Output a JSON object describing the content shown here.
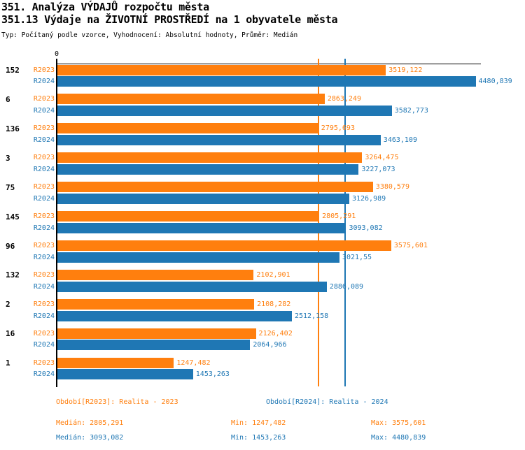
{
  "header": {
    "title1": "351. Analýza VÝDAJŮ rozpočtu města",
    "title2": "351.13 Výdaje na ŽIVOTNÍ PROSTŘEDÍ na 1 obyvatele města",
    "subtitle": "Typ: Počítaný podle vzorce, Vyhodnocení: Absolutní hodnoty, Průměr: Medián"
  },
  "colors": {
    "r2023": "#ff7f0e",
    "r2024": "#1f77b4",
    "axis": "#000000",
    "background": "#ffffff"
  },
  "axis": {
    "zero_label": "0"
  },
  "chart_data": {
    "type": "bar",
    "orientation": "horizontal",
    "categories": [
      "152",
      "6",
      "136",
      "3",
      "75",
      "145",
      "96",
      "132",
      "2",
      "16",
      "1"
    ],
    "series": [
      {
        "name": "R2023",
        "color": "#ff7f0e",
        "values": [
          3519.122,
          2863.249,
          2795.693,
          3264.475,
          3380.579,
          2805.291,
          3575.601,
          2102.901,
          2108.282,
          2126.402,
          1247.482
        ],
        "value_labels": [
          "3519,122",
          "2863,249",
          "2795,693",
          "3264,475",
          "3380,579",
          "2805,291",
          "3575,601",
          "2102,901",
          "2108,282",
          "2126,402",
          "1247,482"
        ]
      },
      {
        "name": "R2024",
        "color": "#1f77b4",
        "values": [
          4480.839,
          3582.773,
          3463.109,
          3227.073,
          3126.989,
          3093.082,
          3021.55,
          2886.089,
          2512.158,
          2064.966,
          1453.263
        ],
        "value_labels": [
          "4480,839",
          "3582,773",
          "3463,109",
          "3227,073",
          "3126,989",
          "3093,082",
          "3021,55",
          "2886,089",
          "2512,158",
          "2064,966",
          "1453,263"
        ]
      }
    ],
    "median_lines": [
      {
        "series": "R2023",
        "value": 2805.291,
        "color": "#ff7f0e"
      },
      {
        "series": "R2024",
        "value": 3093.082,
        "color": "#1f77b4"
      }
    ],
    "xlim": [
      0,
      5000
    ],
    "grid": false,
    "legend_position": "bottom"
  },
  "legend": [
    {
      "label": "Období[R2023]: Realita - 2023",
      "color": "#ff7f0e"
    },
    {
      "label": "Období[R2024]: Realita - 2024",
      "color": "#1f77b4"
    }
  ],
  "stats": {
    "r2023": {
      "median": "Medián: 2805,291",
      "min": "Min: 1247,482",
      "max": "Max: 3575,601"
    },
    "r2024": {
      "median": "Medián: 3093,082",
      "min": "Min: 1453,263",
      "max": "Max: 4480,839"
    }
  }
}
